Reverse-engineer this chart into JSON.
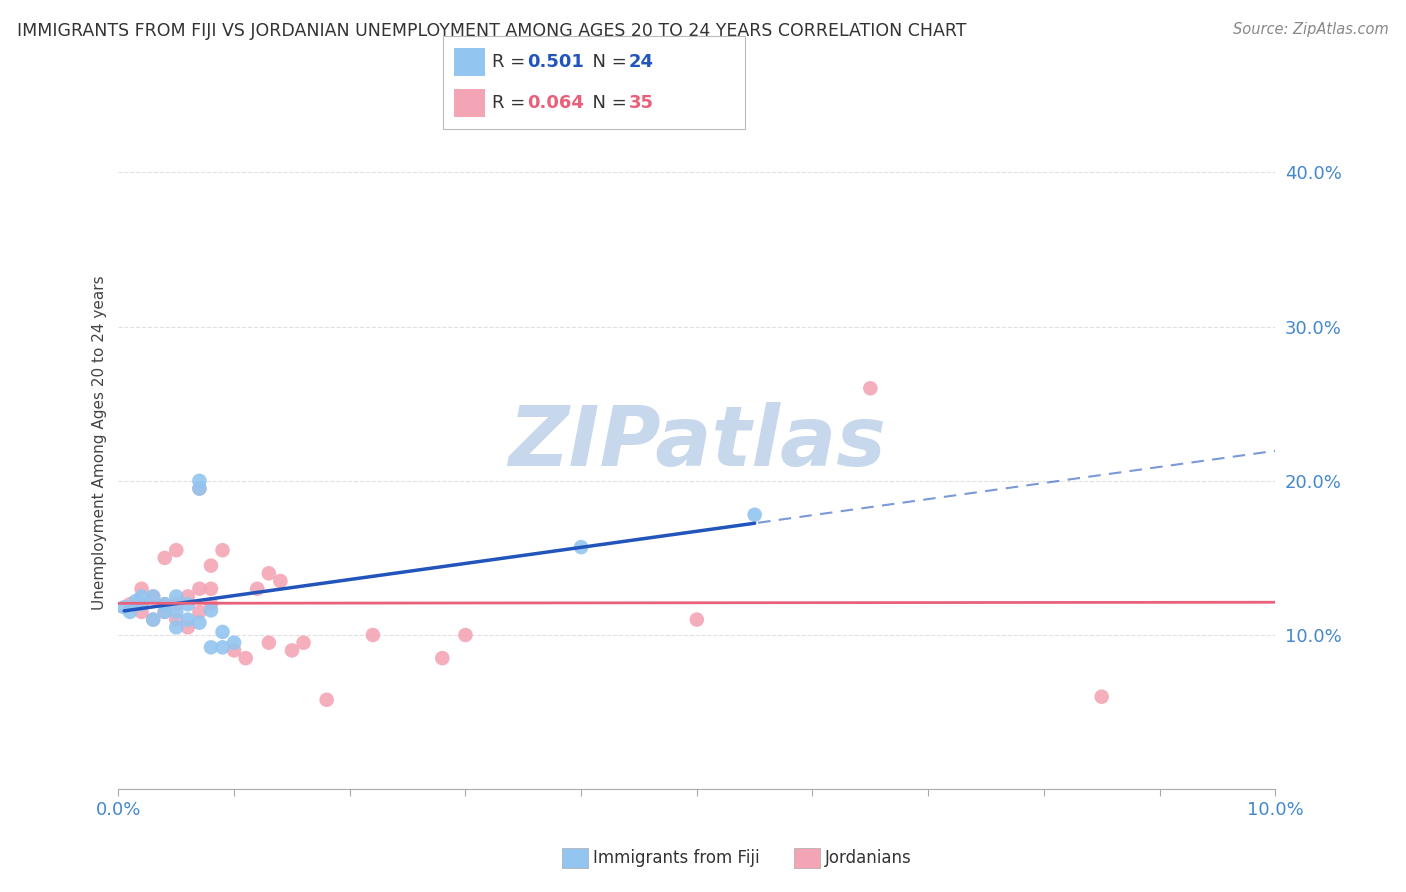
{
  "title": "IMMIGRANTS FROM FIJI VS JORDANIAN UNEMPLOYMENT AMONG AGES 20 TO 24 YEARS CORRELATION CHART",
  "source": "Source: ZipAtlas.com",
  "ylabel": "Unemployment Among Ages 20 to 24 years",
  "xlim": [
    0.0,
    0.1
  ],
  "ylim": [
    0.0,
    0.45
  ],
  "x_ticks": [
    0.0,
    0.01,
    0.02,
    0.03,
    0.04,
    0.05,
    0.06,
    0.07,
    0.08,
    0.09,
    0.1
  ],
  "y_ticks": [
    0.0,
    0.1,
    0.2,
    0.3,
    0.4
  ],
  "x_tick_labels": [
    "0.0%",
    "",
    "",
    "",
    "",
    "",
    "",
    "",
    "",
    "",
    "10.0%"
  ],
  "y_tick_labels": [
    "",
    "10.0%",
    "20.0%",
    "30.0%",
    "40.0%"
  ],
  "fiji_R": 0.501,
  "fiji_N": 24,
  "jordan_R": 0.064,
  "jordan_N": 35,
  "fiji_color": "#92C5F0",
  "jordan_color": "#F4A5B5",
  "fiji_line_color": "#2255BB",
  "jordan_line_color": "#E8607A",
  "watermark_text": "ZIPatlas",
  "watermark_color": "#C8D8EC",
  "background_color": "#ffffff",
  "grid_color": "#e0e0e0",
  "tick_color": "#4488CC",
  "fiji_scatter_x": [
    0.0005,
    0.001,
    0.0015,
    0.002,
    0.002,
    0.003,
    0.003,
    0.004,
    0.004,
    0.005,
    0.005,
    0.005,
    0.006,
    0.006,
    0.007,
    0.007,
    0.007,
    0.008,
    0.008,
    0.009,
    0.009,
    0.01,
    0.04,
    0.055
  ],
  "fiji_scatter_y": [
    0.118,
    0.115,
    0.122,
    0.12,
    0.125,
    0.11,
    0.125,
    0.115,
    0.12,
    0.105,
    0.115,
    0.125,
    0.11,
    0.12,
    0.108,
    0.195,
    0.2,
    0.116,
    0.092,
    0.092,
    0.102,
    0.095,
    0.157,
    0.178
  ],
  "jordan_scatter_x": [
    0.001,
    0.002,
    0.002,
    0.003,
    0.003,
    0.004,
    0.004,
    0.004,
    0.005,
    0.005,
    0.005,
    0.006,
    0.006,
    0.007,
    0.007,
    0.007,
    0.008,
    0.008,
    0.008,
    0.009,
    0.01,
    0.011,
    0.012,
    0.013,
    0.013,
    0.014,
    0.015,
    0.016,
    0.018,
    0.022,
    0.028,
    0.03,
    0.05,
    0.065,
    0.085
  ],
  "jordan_scatter_y": [
    0.12,
    0.115,
    0.13,
    0.11,
    0.125,
    0.115,
    0.12,
    0.15,
    0.11,
    0.12,
    0.155,
    0.105,
    0.125,
    0.13,
    0.115,
    0.195,
    0.12,
    0.13,
    0.145,
    0.155,
    0.09,
    0.085,
    0.13,
    0.095,
    0.14,
    0.135,
    0.09,
    0.095,
    0.058,
    0.1,
    0.085,
    0.1,
    0.11,
    0.26,
    0.06
  ],
  "legend_fiji_label": "R =  0.501   N = 24",
  "legend_jordan_label": "R =  0.064   N = 35",
  "bottom_legend_fiji": "Immigrants from Fiji",
  "bottom_legend_jordan": "Jordanians"
}
